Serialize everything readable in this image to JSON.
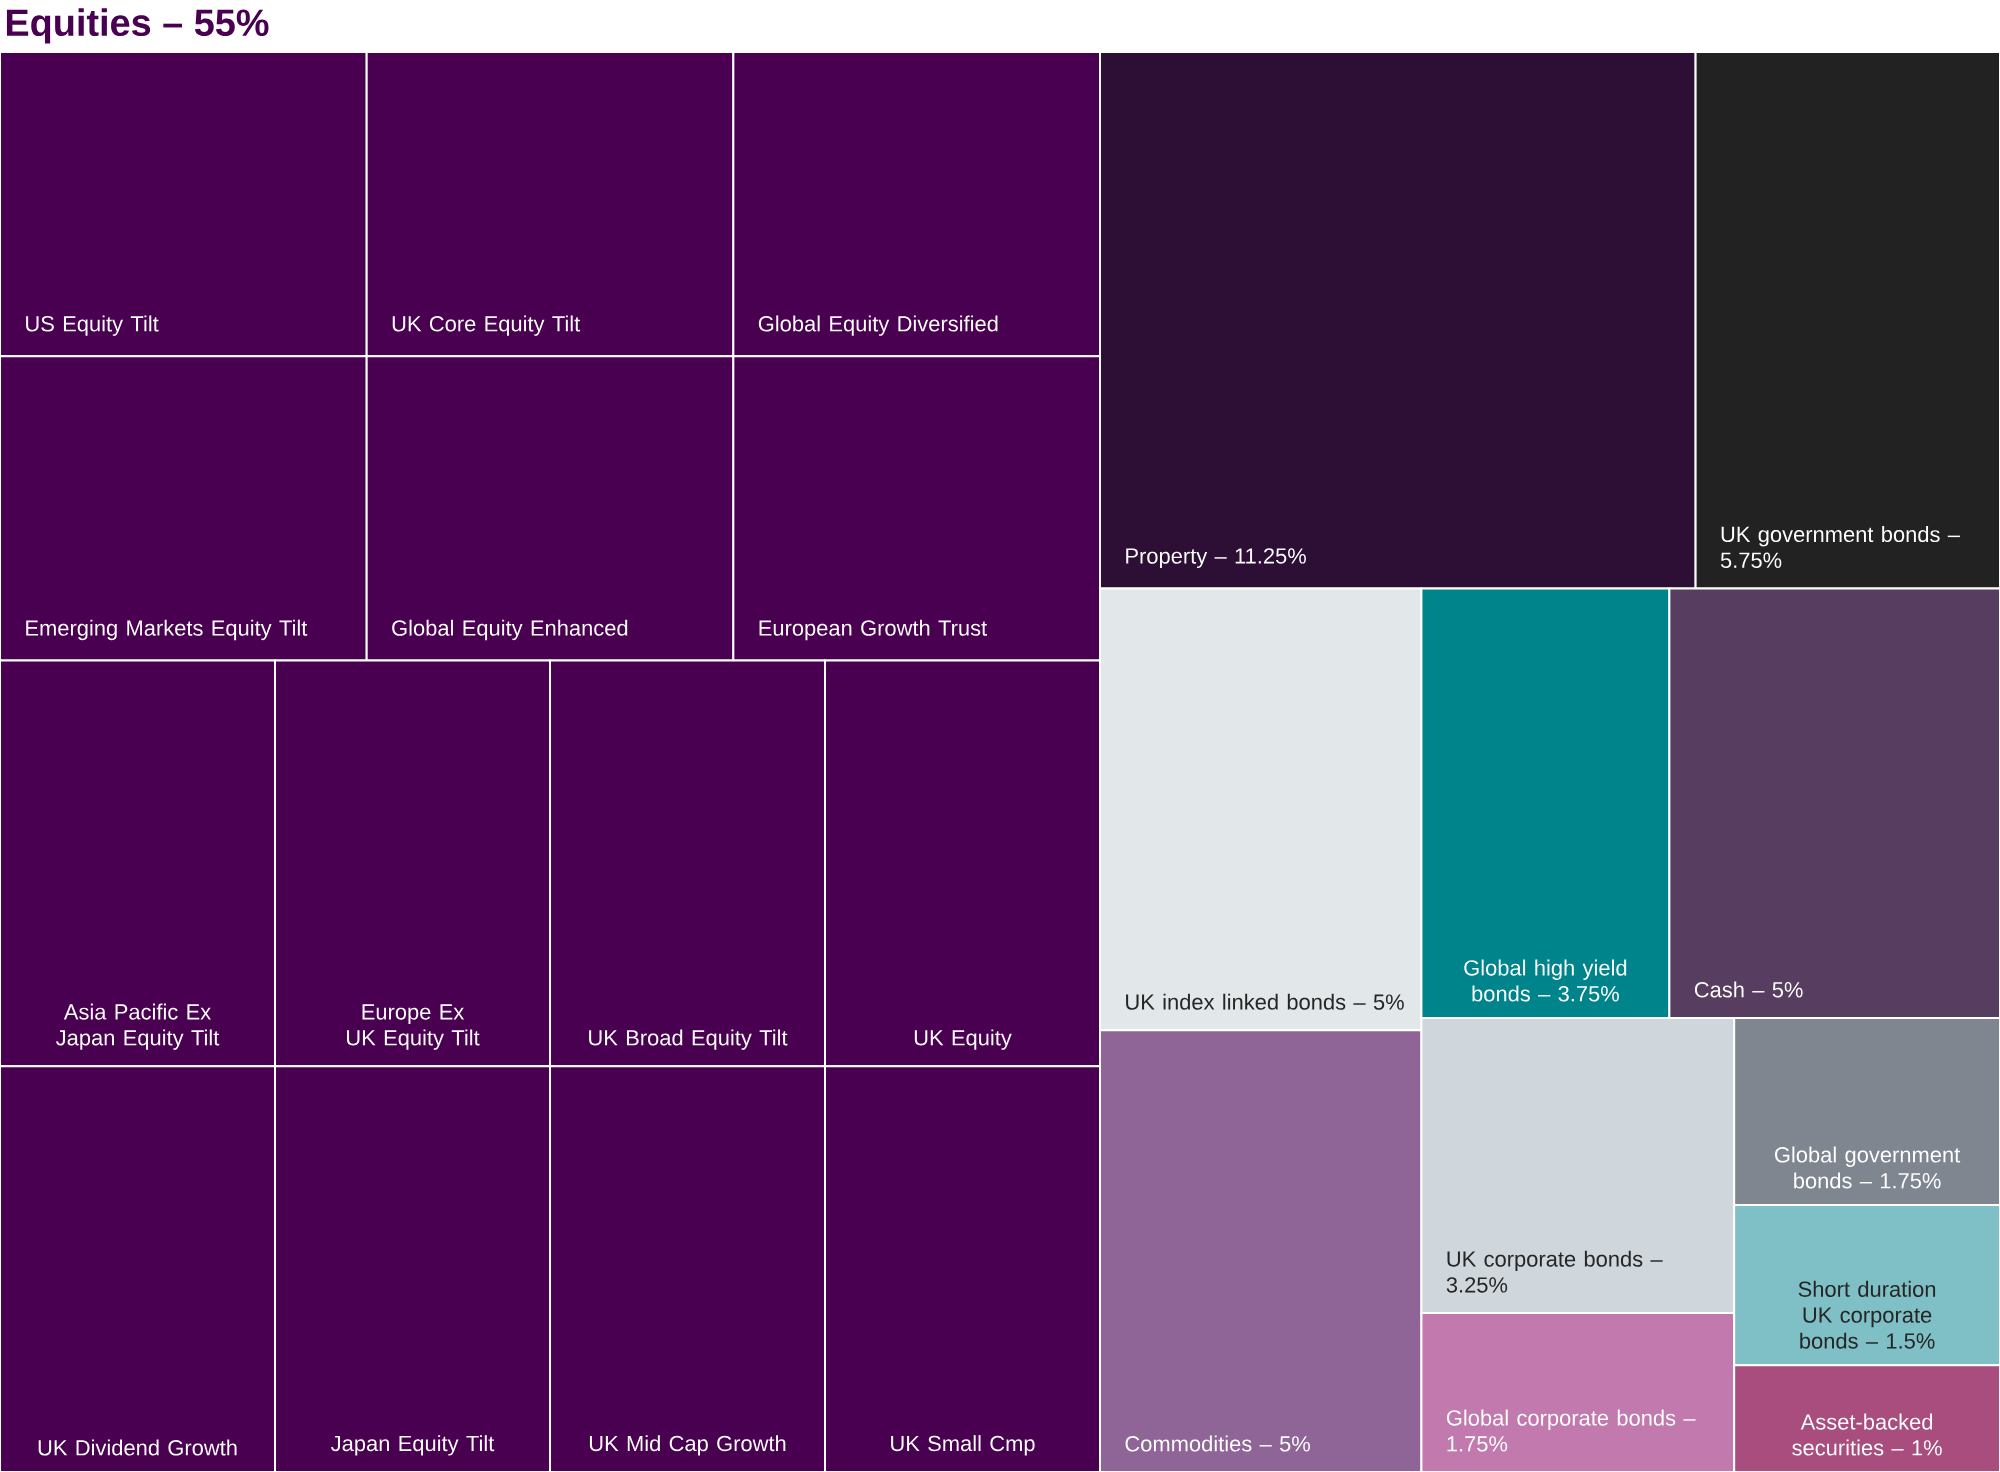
{
  "chart_data": {
    "type": "other",
    "title": "Equities – 55%",
    "categories": [
      "US Equity Tilt",
      "UK Core Equity Tilt",
      "Global Equity Diversified",
      "Emerging Markets Equity Tilt",
      "Global Equity Enhanced",
      "European Growth Trust",
      "Asia Pacific Ex Japan Equity Tilt",
      "UK Dividend Growth",
      "Europe Ex UK Equity Tilt",
      "Japan Equity Tilt",
      "UK Broad Equity Tilt",
      "UK Equity",
      "UK Mid Cap Growth",
      "UK Small Cmp",
      "Property –",
      "UK government bonds –",
      "UK index linked bonds –",
      "Commodities –",
      "Global high yield bonds –",
      "Cash –",
      "UK corporate bonds –",
      "Global corporate bonds –",
      "Global government bonds –",
      "Short duration UK corporate bonds –",
      "Asset-backed securities –"
    ],
    "series": [
      {
        "color": "#4a0050",
        "values": [
          null,
          null,
          null,
          null,
          null,
          null,
          null,
          null,
          null,
          null,
          null,
          null,
          null,
          null,
          null,
          null,
          null,
          null,
          null,
          null,
          null,
          null,
          null,
          null,
          null
        ]
      },
      {
        "colors": [
          null,
          null,
          null,
          null,
          null,
          null,
          null,
          null,
          null,
          null,
          null,
          null,
          null,
          null,
          "#2d0f36",
          "#222222",
          "#e2e7ea",
          "#8f6496",
          "#00848c",
          "#573d60",
          "#d0d7dc",
          "#c27aae",
          "#7f8690",
          "#7fbfc6",
          "#a94d7e"
        ],
        "values": [
          null,
          null,
          null,
          null,
          null,
          null,
          null,
          null,
          null,
          null,
          null,
          null,
          null,
          null,
          11.25,
          5.75,
          5,
          5,
          3.75,
          5,
          3.25,
          1.75,
          1.75,
          1.5,
          1
        ],
        "value_labels": [
          null,
          null,
          null,
          null,
          null,
          null,
          null,
          null,
          null,
          null,
          null,
          null,
          null,
          null,
          "11.25%",
          "5.75%",
          "5%",
          "5%",
          "3.75%",
          "5%",
          "3.25%",
          "1.75%",
          "1.75%",
          "1.5%",
          "1%"
        ]
      }
    ]
  }
}
